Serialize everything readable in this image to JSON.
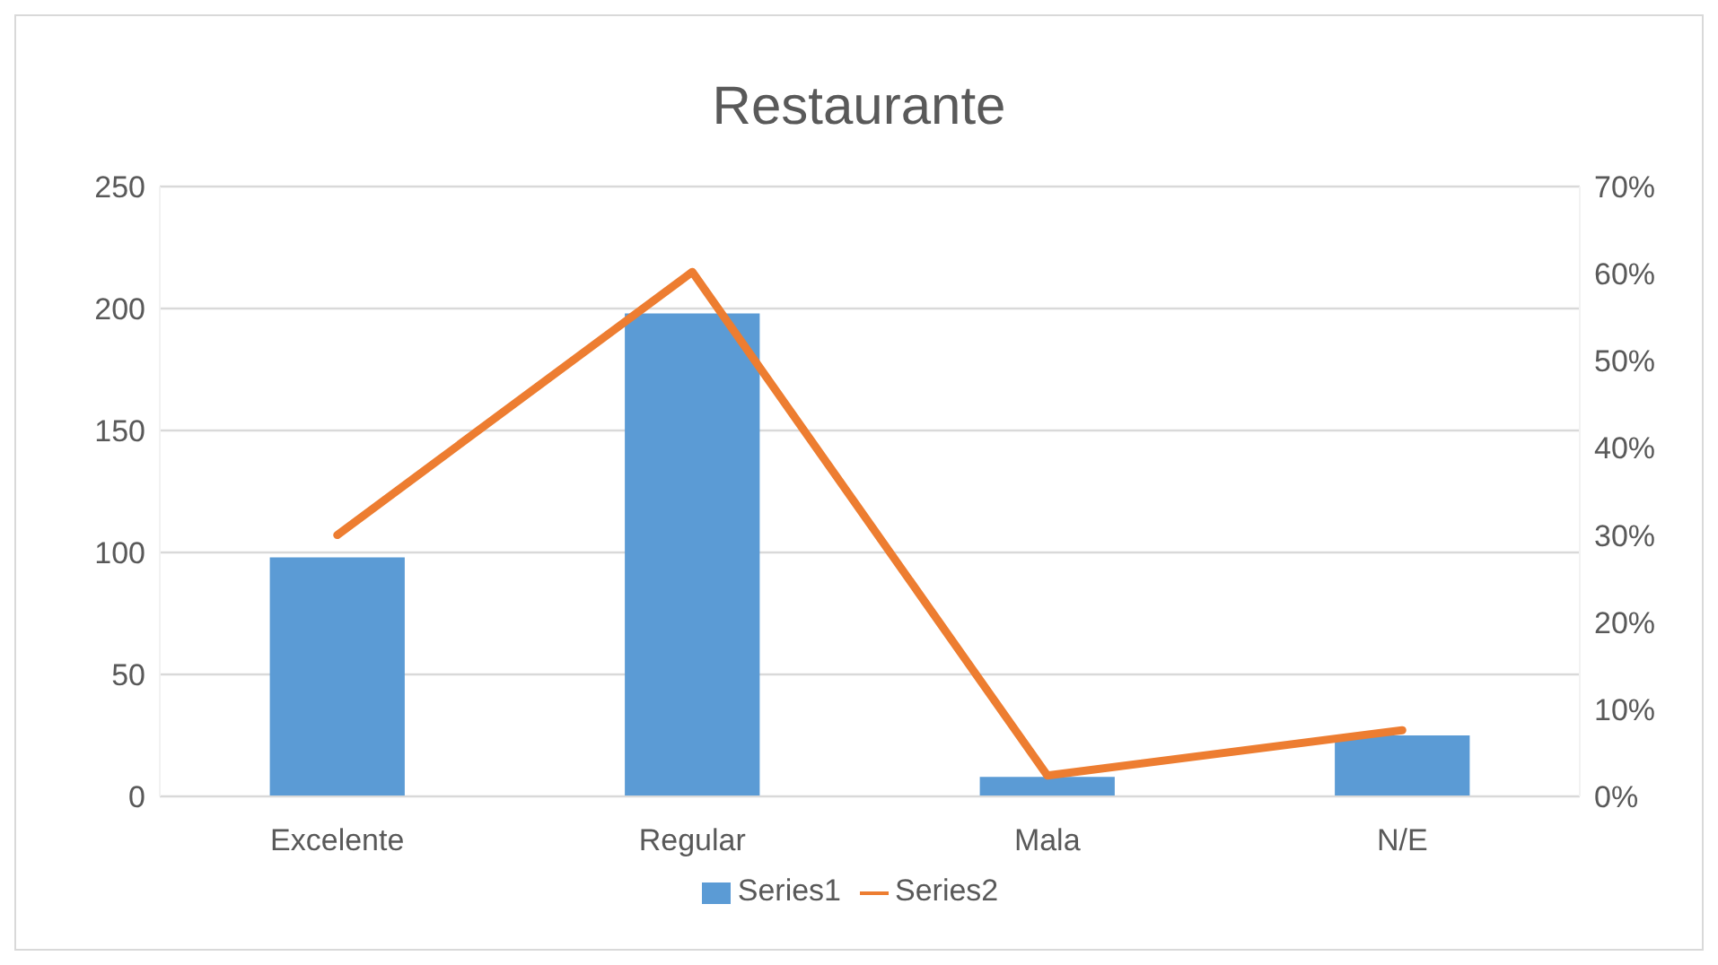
{
  "chart_data": {
    "type": "bar",
    "title": "Restaurante",
    "categories": [
      "Excelente",
      "Regular",
      "Mala",
      "N/E"
    ],
    "series": [
      {
        "name": "Series1",
        "color": "#5b9bd5",
        "values": [
          98,
          198,
          8,
          25
        ]
      },
      {
        "name": "Series2",
        "type": "line",
        "axis": "y2",
        "color": "#ed7d31",
        "values": [
          30,
          60.2,
          2.4,
          7.6
        ]
      }
    ],
    "ylim": [
      0,
      250
    ],
    "yticks": [
      0,
      50,
      100,
      150,
      200,
      250
    ],
    "y2lim": [
      0,
      70
    ],
    "y2ticks": [
      {
        "value": 0,
        "label": "0%"
      },
      {
        "value": 10,
        "label": "10%"
      },
      {
        "value": 20,
        "label": "20%"
      },
      {
        "value": 30,
        "label": "30%"
      },
      {
        "value": 40,
        "label": "40%"
      },
      {
        "value": 50,
        "label": "50%"
      },
      {
        "value": 60,
        "label": "60%"
      },
      {
        "value": 70,
        "label": "70%"
      }
    ],
    "grid": "y",
    "legend": "bottom",
    "marker": "none",
    "line_style": "solid"
  }
}
